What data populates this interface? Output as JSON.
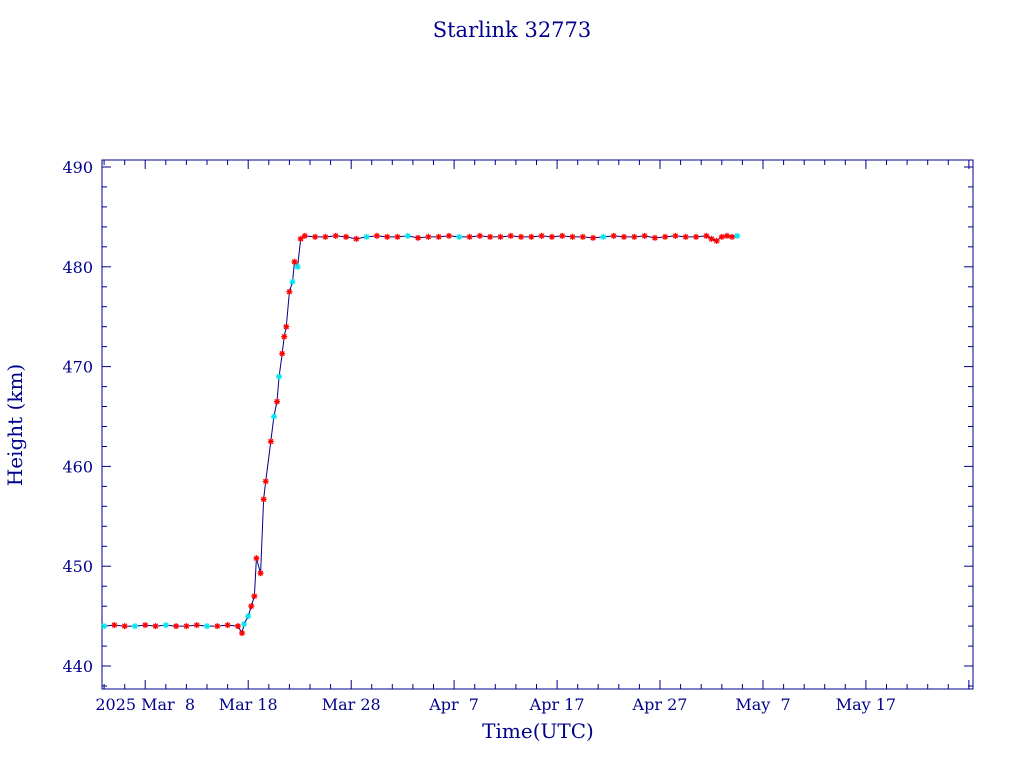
{
  "chart_data": {
    "type": "line",
    "title": "Starlink 32773",
    "xlabel": "Time(UTC)",
    "ylabel": "Height (km)",
    "x_tick_labels": [
      "2025 Mar  8",
      "Mar 18",
      "Mar 28",
      "Apr  7",
      "Apr 17",
      "Apr 27",
      "May  7",
      "May 17"
    ],
    "x_tick_days": [
      0,
      10,
      20,
      30,
      40,
      50,
      60,
      70
    ],
    "x_range_days": [
      -4.2,
      80.4
    ],
    "y_ticks": [
      440,
      450,
      460,
      470,
      480,
      490
    ],
    "ylim": [
      437.7,
      490.7
    ],
    "grid": false,
    "colors": {
      "axis": "#00008b",
      "line": "#00008b",
      "marker_primary": "#ff0000",
      "marker_secondary": "#00e5ee"
    },
    "series": [
      {
        "points": [
          [
            -4.0,
            444.0
          ],
          [
            -3.0,
            444.1
          ],
          [
            -2.0,
            444.0
          ],
          [
            -1.0,
            444.0
          ],
          [
            0.0,
            444.1
          ],
          [
            1.0,
            444.0
          ],
          [
            2.0,
            444.1
          ],
          [
            3.0,
            444.0
          ],
          [
            4.0,
            444.0
          ],
          [
            5.0,
            444.1
          ],
          [
            6.0,
            444.0
          ],
          [
            7.0,
            444.0
          ],
          [
            8.0,
            444.1
          ],
          [
            9.0,
            444.0
          ],
          [
            9.4,
            443.3
          ],
          [
            9.6,
            444.2
          ],
          [
            10.0,
            445.0
          ],
          [
            10.3,
            446.0
          ],
          [
            10.6,
            447.0
          ],
          [
            10.8,
            450.8
          ],
          [
            11.2,
            449.3
          ],
          [
            11.5,
            456.7
          ],
          [
            11.7,
            458.5
          ],
          [
            12.2,
            462.5
          ],
          [
            12.5,
            465.0
          ],
          [
            12.8,
            466.5
          ],
          [
            13.0,
            469.0
          ],
          [
            13.3,
            471.3
          ],
          [
            13.5,
            473.0
          ],
          [
            13.7,
            474.0
          ],
          [
            14.0,
            477.5
          ],
          [
            14.3,
            478.5
          ],
          [
            14.5,
            480.5
          ],
          [
            14.8,
            480.0
          ],
          [
            15.1,
            482.8
          ],
          [
            15.5,
            483.1
          ],
          [
            16.5,
            483.0
          ],
          [
            17.5,
            483.0
          ],
          [
            18.5,
            483.1
          ],
          [
            19.5,
            483.0
          ],
          [
            20.5,
            482.8
          ],
          [
            21.5,
            483.0
          ],
          [
            22.5,
            483.1
          ],
          [
            23.5,
            483.0
          ],
          [
            24.5,
            483.0
          ],
          [
            25.5,
            483.1
          ],
          [
            26.5,
            482.9
          ],
          [
            27.5,
            483.0
          ],
          [
            28.5,
            483.0
          ],
          [
            29.5,
            483.1
          ],
          [
            30.5,
            483.0
          ],
          [
            31.5,
            483.0
          ],
          [
            32.5,
            483.1
          ],
          [
            33.5,
            483.0
          ],
          [
            34.5,
            483.0
          ],
          [
            35.5,
            483.1
          ],
          [
            36.5,
            483.0
          ],
          [
            37.5,
            483.0
          ],
          [
            38.5,
            483.1
          ],
          [
            39.5,
            483.0
          ],
          [
            40.5,
            483.1
          ],
          [
            41.5,
            483.0
          ],
          [
            42.5,
            483.0
          ],
          [
            43.5,
            482.9
          ],
          [
            44.5,
            483.0
          ],
          [
            45.5,
            483.1
          ],
          [
            46.5,
            483.0
          ],
          [
            47.5,
            483.0
          ],
          [
            48.5,
            483.1
          ],
          [
            49.5,
            482.9
          ],
          [
            50.5,
            483.0
          ],
          [
            51.5,
            483.1
          ],
          [
            52.5,
            483.0
          ],
          [
            53.5,
            483.0
          ],
          [
            54.5,
            483.1
          ],
          [
            55.0,
            482.8
          ],
          [
            55.5,
            482.6
          ],
          [
            56.0,
            483.0
          ],
          [
            56.5,
            483.1
          ],
          [
            57.0,
            483.0
          ],
          [
            57.5,
            483.1
          ]
        ],
        "secondary_marker_days": [
          -4.0,
          -1.0,
          2.0,
          6.0,
          9.6,
          10.0,
          12.5,
          13.0,
          14.3,
          14.8,
          17.0,
          21.5,
          25.5,
          30.5,
          36.0,
          40.0,
          44.5,
          48.0,
          53.0,
          57.5
        ]
      }
    ]
  }
}
